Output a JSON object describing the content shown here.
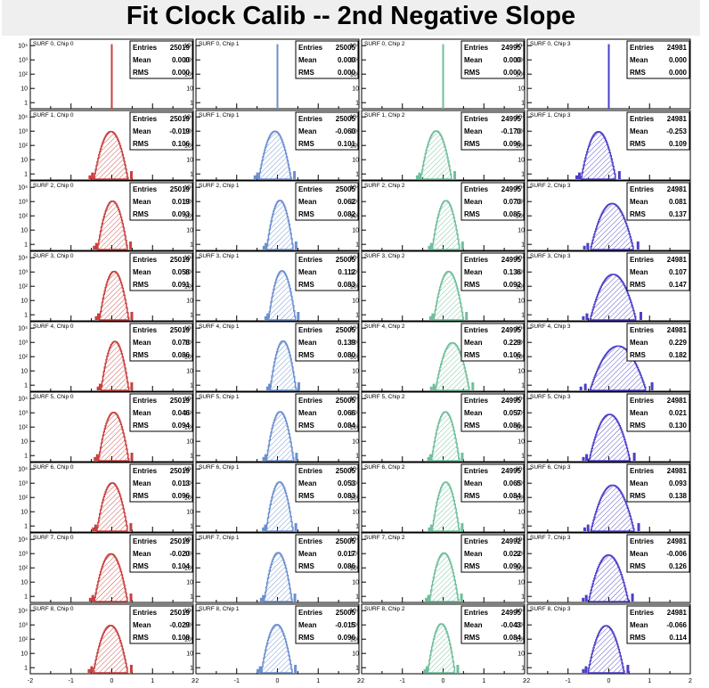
{
  "title": "Fit Clock Calib -- 2nd Negative Slope",
  "colors": [
    "#c8403e",
    "#6b8fce",
    "#6fbf9a",
    "#4b3fc8"
  ],
  "stat_labels": {
    "entries": "Entries",
    "mean": "Mean",
    "rms": "RMS"
  },
  "x_ticks": [
    "-2",
    "-1",
    "0",
    "1",
    "2"
  ],
  "y_ticks": [
    "1",
    "10",
    "10²",
    "10³",
    "10⁴"
  ],
  "chart_data": {
    "type": "histogram-grid",
    "rows": 9,
    "cols": 4,
    "xlim": [
      -2,
      2
    ],
    "log_y": true,
    "panels": [
      {
        "label": "SURF 0, Chip 0",
        "entries": "25019",
        "mean": "0.000",
        "rms": "0.000",
        "center": 0.0,
        "width": 0.0
      },
      {
        "label": "SURF 0, Chip 1",
        "entries": "25005",
        "mean": "0.000",
        "rms": "0.000",
        "center": 0.0,
        "width": 0.0
      },
      {
        "label": "SURF 0, Chip 2",
        "entries": "24995",
        "mean": "0.000",
        "rms": "0.000",
        "center": 0.0,
        "width": 0.0
      },
      {
        "label": "SURF 0, Chip 3",
        "entries": "24981",
        "mean": "0.000",
        "rms": "0.000",
        "center": 0.0,
        "width": 0.0
      },
      {
        "label": "SURF 1, Chip 0",
        "entries": "25019",
        "mean": "-0.019",
        "rms": "0.106",
        "center": -0.019,
        "width": 0.106
      },
      {
        "label": "SURF 1, Chip 1",
        "entries": "25005",
        "mean": "-0.060",
        "rms": "0.101",
        "center": -0.06,
        "width": 0.101
      },
      {
        "label": "SURF 1, Chip 2",
        "entries": "24995",
        "mean": "-0.170",
        "rms": "0.096",
        "center": -0.17,
        "width": 0.096
      },
      {
        "label": "SURF 1, Chip 3",
        "entries": "24981",
        "mean": "-0.253",
        "rms": "0.109",
        "center": -0.253,
        "width": 0.109
      },
      {
        "label": "SURF 2, Chip 0",
        "entries": "25019",
        "mean": "0.019",
        "rms": "0.093",
        "center": 0.019,
        "width": 0.093
      },
      {
        "label": "SURF 2, Chip 1",
        "entries": "25005",
        "mean": "0.062",
        "rms": "0.082",
        "center": 0.062,
        "width": 0.082
      },
      {
        "label": "SURF 2, Chip 2",
        "entries": "24995",
        "mean": "0.070",
        "rms": "0.085",
        "center": 0.07,
        "width": 0.085
      },
      {
        "label": "SURF 2, Chip 3",
        "entries": "24981",
        "mean": "0.081",
        "rms": "0.137",
        "center": 0.081,
        "width": 0.137
      },
      {
        "label": "SURF 3, Chip 0",
        "entries": "25019",
        "mean": "0.058",
        "rms": "0.091",
        "center": 0.058,
        "width": 0.091
      },
      {
        "label": "SURF 3, Chip 1",
        "entries": "25005",
        "mean": "0.112",
        "rms": "0.083",
        "center": 0.112,
        "width": 0.083
      },
      {
        "label": "SURF 3, Chip 2",
        "entries": "24995",
        "mean": "0.136",
        "rms": "0.092",
        "center": 0.136,
        "width": 0.092
      },
      {
        "label": "SURF 3, Chip 3",
        "entries": "24981",
        "mean": "0.107",
        "rms": "0.147",
        "center": 0.107,
        "width": 0.147
      },
      {
        "label": "SURF 4, Chip 0",
        "entries": "25019",
        "mean": "0.078",
        "rms": "0.086",
        "center": 0.078,
        "width": 0.086
      },
      {
        "label": "SURF 4, Chip 1",
        "entries": "25005",
        "mean": "0.139",
        "rms": "0.080",
        "center": 0.139,
        "width": 0.08
      },
      {
        "label": "SURF 4, Chip 2",
        "entries": "24995",
        "mean": "0.229",
        "rms": "0.106",
        "center": 0.229,
        "width": 0.106
      },
      {
        "label": "SURF 4, Chip 3",
        "entries": "24981",
        "mean": "0.229",
        "rms": "0.182",
        "center": 0.229,
        "width": 0.182
      },
      {
        "label": "SURF 5, Chip 0",
        "entries": "25019",
        "mean": "0.046",
        "rms": "0.094",
        "center": 0.046,
        "width": 0.094
      },
      {
        "label": "SURF 5, Chip 1",
        "entries": "25005",
        "mean": "0.066",
        "rms": "0.084",
        "center": 0.066,
        "width": 0.084
      },
      {
        "label": "SURF 5, Chip 2",
        "entries": "24995",
        "mean": "0.057",
        "rms": "0.086",
        "center": 0.057,
        "width": 0.086
      },
      {
        "label": "SURF 5, Chip 3",
        "entries": "24981",
        "mean": "0.021",
        "rms": "0.130",
        "center": 0.021,
        "width": 0.13
      },
      {
        "label": "SURF 6, Chip 0",
        "entries": "25019",
        "mean": "0.013",
        "rms": "0.096",
        "center": 0.013,
        "width": 0.096
      },
      {
        "label": "SURF 6, Chip 1",
        "entries": "25005",
        "mean": "0.053",
        "rms": "0.083",
        "center": 0.053,
        "width": 0.083
      },
      {
        "label": "SURF 6, Chip 2",
        "entries": "24995",
        "mean": "0.065",
        "rms": "0.084",
        "center": 0.065,
        "width": 0.084
      },
      {
        "label": "SURF 6, Chip 3",
        "entries": "24981",
        "mean": "0.093",
        "rms": "0.138",
        "center": 0.093,
        "width": 0.138
      },
      {
        "label": "SURF 7, Chip 0",
        "entries": "25019",
        "mean": "-0.020",
        "rms": "0.104",
        "center": -0.02,
        "width": 0.104
      },
      {
        "label": "SURF 7, Chip 1",
        "entries": "25005",
        "mean": "0.017",
        "rms": "0.086",
        "center": 0.017,
        "width": 0.086
      },
      {
        "label": "SURF 7, Chip 2",
        "entries": "24992",
        "mean": "0.022",
        "rms": "0.090",
        "center": 0.022,
        "width": 0.09
      },
      {
        "label": "SURF 7, Chip 3",
        "entries": "24981",
        "mean": "-0.006",
        "rms": "0.126",
        "center": -0.006,
        "width": 0.126
      },
      {
        "label": "SURF 8, Chip 0",
        "entries": "25019",
        "mean": "-0.029",
        "rms": "0.108",
        "center": -0.029,
        "width": 0.108
      },
      {
        "label": "SURF 8, Chip 1",
        "entries": "25005",
        "mean": "-0.015",
        "rms": "0.096",
        "center": -0.015,
        "width": 0.096
      },
      {
        "label": "SURF 8, Chip 2",
        "entries": "24995",
        "mean": "-0.043",
        "rms": "0.084",
        "center": -0.043,
        "width": 0.084
      },
      {
        "label": "SURF 8, Chip 3",
        "entries": "24981",
        "mean": "-0.066",
        "rms": "0.114",
        "center": -0.066,
        "width": 0.114
      }
    ]
  }
}
